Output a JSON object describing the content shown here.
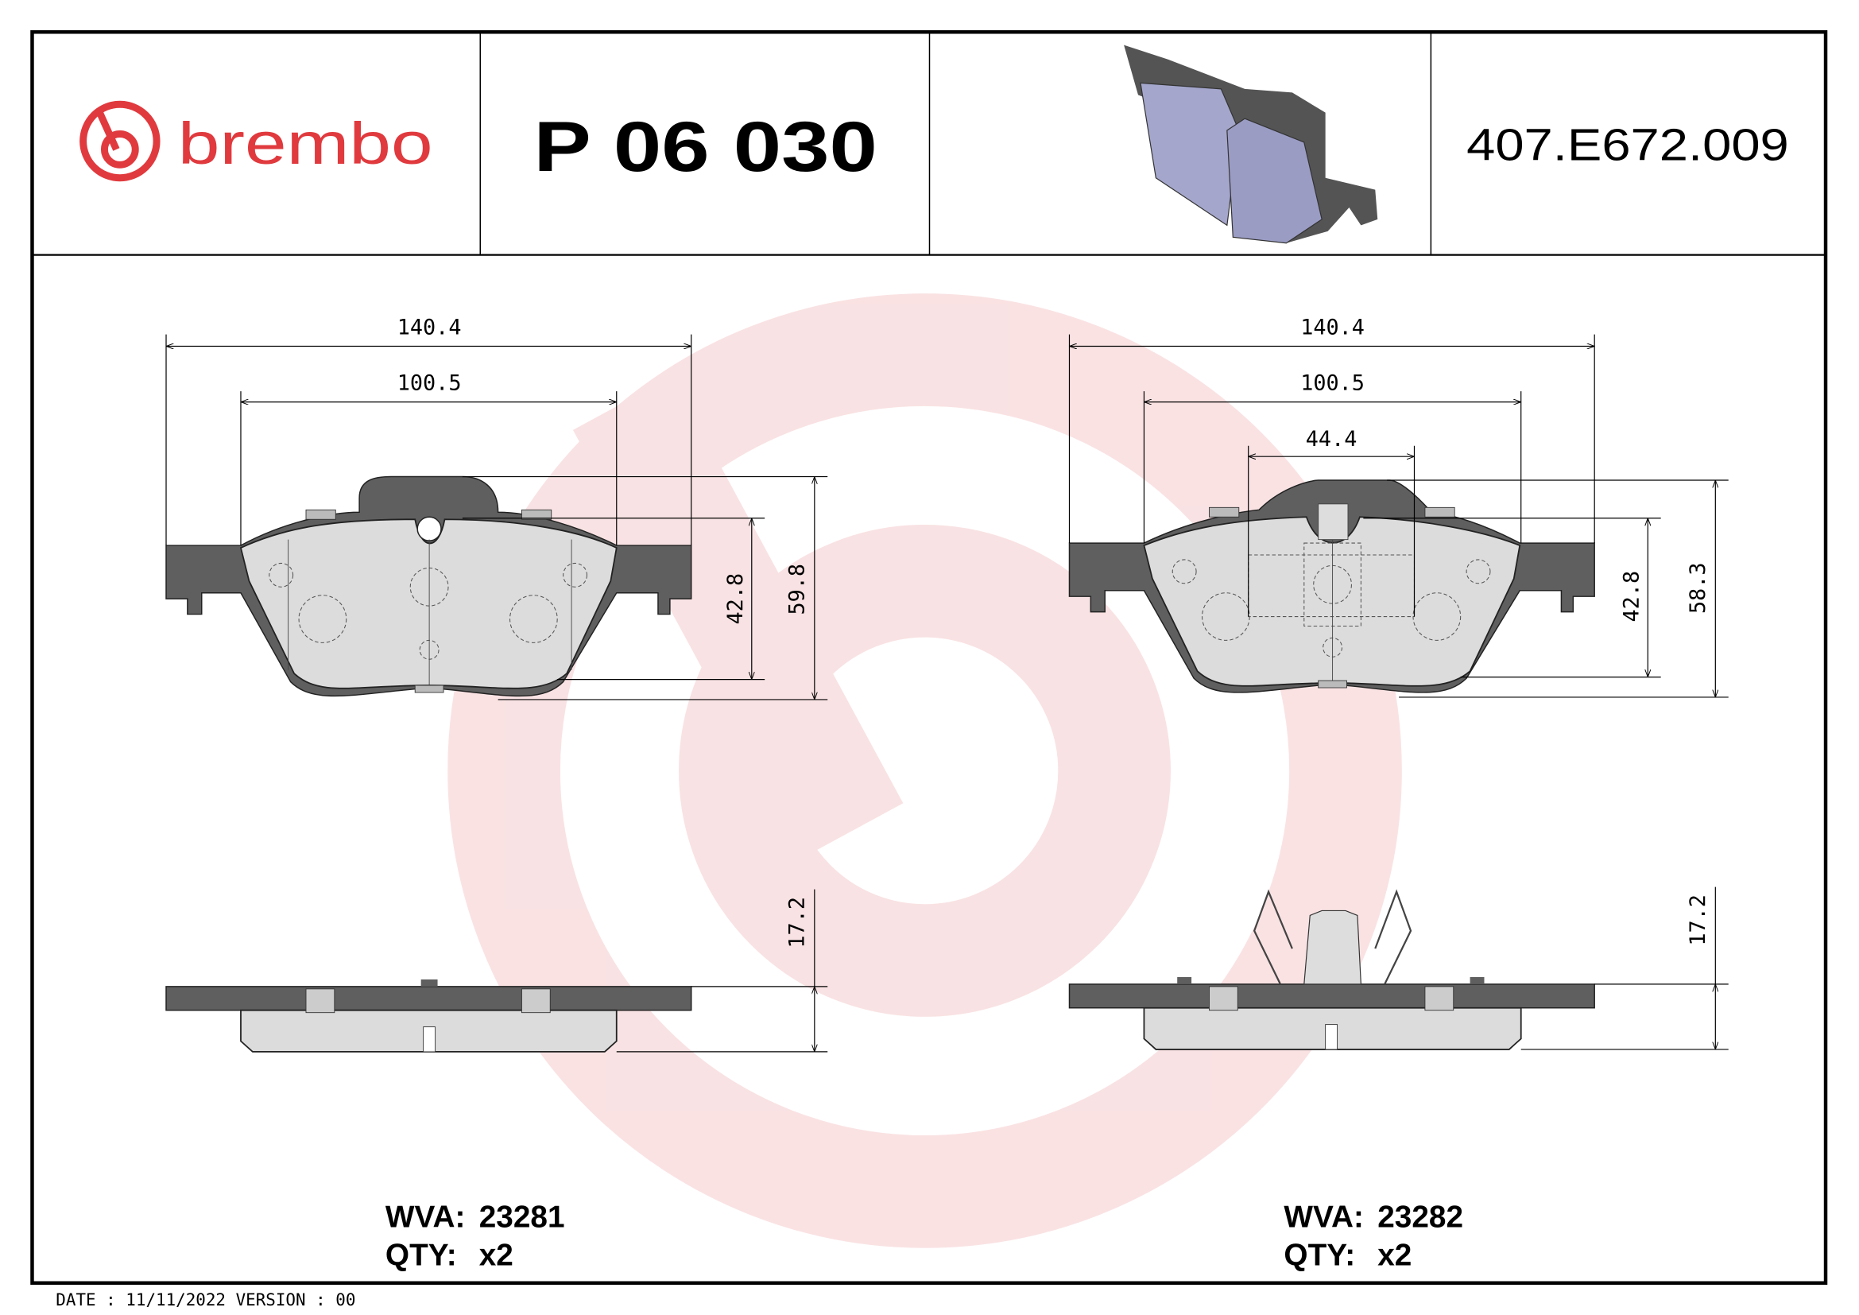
{
  "header": {
    "brand": "brembo",
    "brand_color": "#e03a3e",
    "part_number": "P 06 030",
    "reference": "407.E672.009",
    "image": "brake-pad-3d-render"
  },
  "left_pad": {
    "dim_width_total": "140.4",
    "dim_width_friction": "100.5",
    "dim_height_friction": "42.8",
    "dim_height_total": "59.8",
    "dim_thickness": "17.2",
    "wva_label": "WVA:",
    "wva": "23281",
    "qty_label": "QTY:",
    "qty": "x2"
  },
  "right_pad": {
    "dim_width_total": "140.4",
    "dim_width_friction": "100.5",
    "dim_sensor": "44.4",
    "dim_height_friction": "42.8",
    "dim_height_total": "58.3",
    "dim_thickness": "17.2",
    "wva_label": "WVA:",
    "wva": "23282",
    "qty_label": "QTY:",
    "qty": "x2"
  },
  "footer": {
    "date_label": "DATE :",
    "date": "11/11/2022",
    "version_label": "VERSION :",
    "version": "00"
  },
  "colors": {
    "watermark": "#f7d3d5",
    "plate": "#5f5f5f",
    "friction": "#dcdcdc",
    "render": "#a4a6cc"
  }
}
